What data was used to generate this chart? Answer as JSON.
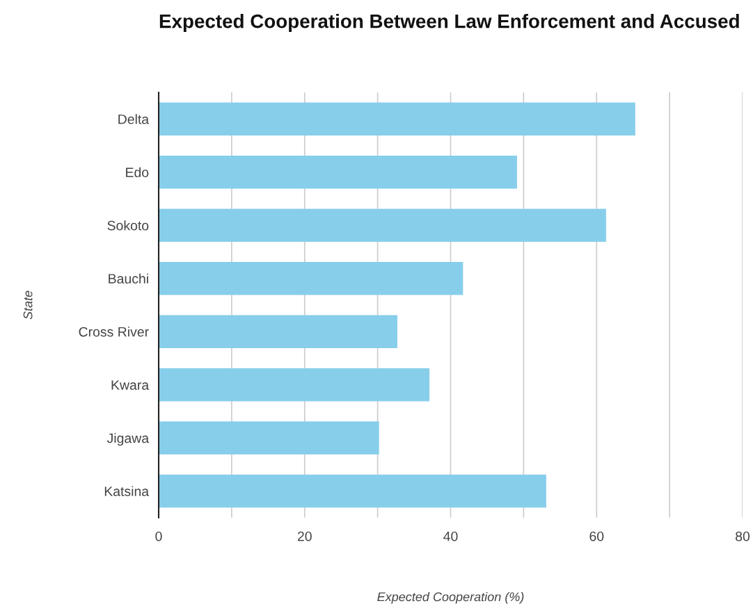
{
  "chart_data": {
    "type": "bar",
    "orientation": "horizontal",
    "title": "Expected Cooperation Between Law Enforcement and Accused",
    "xlabel": "Expected Cooperation (%)",
    "ylabel": "State",
    "categories": [
      "Delta",
      "Edo",
      "Sokoto",
      "Bauchi",
      "Cross River",
      "Kwara",
      "Jigawa",
      "Katsina"
    ],
    "values": [
      65.3,
      49.1,
      61.3,
      41.7,
      32.7,
      37.1,
      30.2,
      53.1
    ],
    "color": "#87ceeb",
    "xlim": [
      0,
      80
    ],
    "xticks": [
      0,
      {
        "value": 10,
        "label": null
      },
      20,
      {
        "value": 30,
        "label": null
      },
      40,
      {
        "value": 50,
        "label": null
      },
      60,
      {
        "value": 70,
        "label": null
      },
      80
    ],
    "grid": "x"
  }
}
